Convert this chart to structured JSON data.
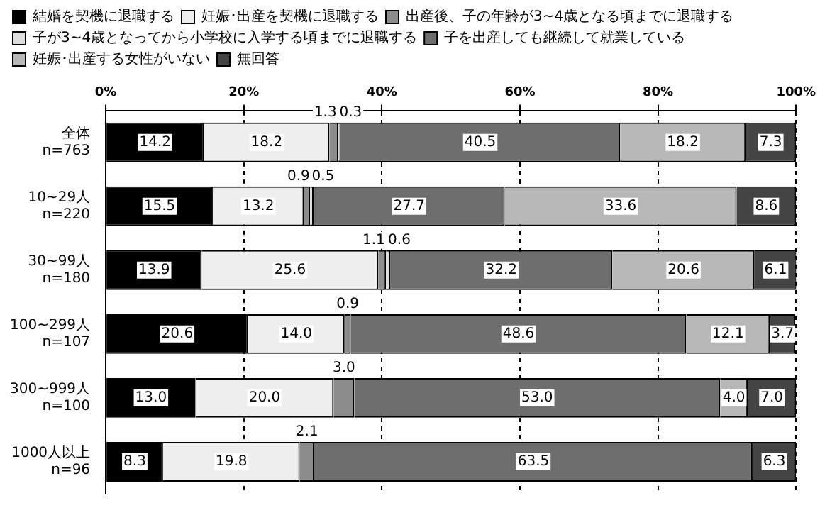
{
  "chart_data": {
    "type": "bar",
    "orientation": "horizontal",
    "stacked": true,
    "grid": "x",
    "legend": "top",
    "categories": [
      "全体\nn=763",
      "10~29人\nn=220",
      "30~99人\nn=180",
      "100~299人\nn=107",
      "300~999人\nn=100",
      "1000人以上\nn=96"
    ],
    "xlim": [
      0,
      100
    ],
    "xticks": [
      {
        "value": 0,
        "label": "0%"
      },
      {
        "value": 20,
        "label": "20%"
      },
      {
        "value": 40,
        "label": "40%"
      },
      {
        "value": 60,
        "label": "60%"
      },
      {
        "value": 80,
        "label": "80%"
      },
      {
        "value": 100,
        "label": "100%"
      }
    ],
    "series": [
      {
        "name": "結婚を契機に退職する",
        "color": "#000000",
        "values": [
          14.2,
          15.5,
          13.9,
          20.6,
          13.0,
          8.3
        ],
        "value_labels": [
          "14.2",
          "15.5",
          "13.9",
          "20.6",
          "13.0",
          "8.3"
        ]
      },
      {
        "name": "妊娠･出産を契機に退職する",
        "color": "#eeeeee",
        "values": [
          18.2,
          13.2,
          25.6,
          14.0,
          20.0,
          19.8
        ],
        "value_labels": [
          "18.2",
          "13.2",
          "25.6",
          "14.0",
          "20.0",
          "19.8"
        ]
      },
      {
        "name": "出産後、子の年齢が3~4歳となる頃までに退職する",
        "color": "#8c8c8c",
        "values": [
          1.3,
          0.9,
          1.1,
          0.9,
          3.0,
          2.1
        ],
        "value_labels": [
          "1.3",
          "0.9",
          "1.1",
          "0.9",
          "3.0",
          "2.1"
        ]
      },
      {
        "name": "子が3~4歳となってから小学校に入学する頃までに退職する",
        "color": "#dddddd",
        "values": [
          0.3,
          0.5,
          0.6,
          null,
          null,
          null
        ],
        "value_labels": [
          "0.3",
          "0.5",
          "0.6",
          null,
          null,
          null
        ]
      },
      {
        "name": "子を出産しても継続して就業している",
        "color": "#6e6e6e",
        "values": [
          40.5,
          27.7,
          32.2,
          48.6,
          53.0,
          63.5
        ],
        "value_labels": [
          "40.5",
          "27.7",
          "32.2",
          "48.6",
          "53.0",
          "63.5"
        ]
      },
      {
        "name": "妊娠･出産する女性がいない",
        "color": "#b8b8b8",
        "values": [
          18.2,
          33.6,
          20.6,
          12.1,
          4.0,
          null
        ],
        "value_labels": [
          "18.2",
          "33.6",
          "20.6",
          "12.1",
          "4.0",
          null
        ]
      },
      {
        "name": "無回答",
        "color": "#444444",
        "values": [
          7.3,
          8.6,
          6.1,
          3.7,
          7.0,
          6.3
        ],
        "value_labels": [
          "7.3",
          "8.6",
          "6.1",
          "3.7",
          "7.0",
          "6.3"
        ]
      }
    ]
  }
}
